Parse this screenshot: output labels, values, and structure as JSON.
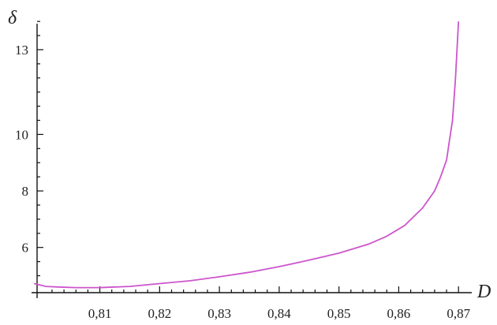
{
  "chart_data": {
    "type": "line",
    "title": "",
    "xlabel": "D",
    "ylabel": "δ",
    "xlim": [
      0.7995,
      0.8705
    ],
    "ylim": [
      4.4,
      14.2
    ],
    "grid": false,
    "x_ticks": [
      {
        "value": 0.81,
        "label": "0,81"
      },
      {
        "value": 0.82,
        "label": "0,82"
      },
      {
        "value": 0.83,
        "label": "0,83"
      },
      {
        "value": 0.84,
        "label": "0,84"
      },
      {
        "value": 0.85,
        "label": "0,85"
      },
      {
        "value": 0.86,
        "label": "0,86"
      },
      {
        "value": 0.87,
        "label": "0,87"
      }
    ],
    "y_ticks": [
      {
        "value": 6,
        "label": "6"
      },
      {
        "value": 8,
        "label": "8"
      },
      {
        "value": 10,
        "label": "10"
      },
      {
        "value": 13,
        "label": "13"
      }
    ],
    "series": [
      {
        "color": "#cc55cc",
        "x": [
          0.799,
          0.801,
          0.803,
          0.806,
          0.81,
          0.815,
          0.82,
          0.825,
          0.83,
          0.835,
          0.84,
          0.845,
          0.85,
          0.855,
          0.858,
          0.861,
          0.864,
          0.866,
          0.867,
          0.868,
          0.8685,
          0.869,
          0.8695,
          0.87
        ],
        "y": [
          4.72,
          4.62,
          4.6,
          4.58,
          4.58,
          4.62,
          4.72,
          4.82,
          4.96,
          5.12,
          5.32,
          5.55,
          5.8,
          6.12,
          6.4,
          6.78,
          7.4,
          8.0,
          8.5,
          9.1,
          9.8,
          10.5,
          12.0,
          14.0
        ]
      }
    ]
  }
}
